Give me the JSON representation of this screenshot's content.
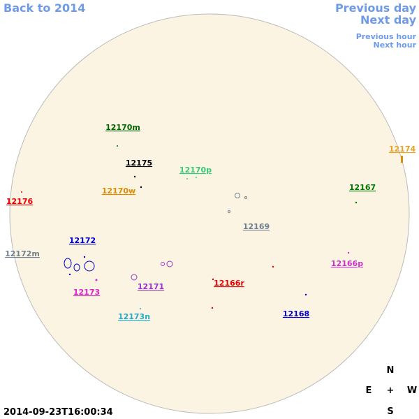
{
  "nav": {
    "back": "Back to 2014",
    "previous_day": "Previous day",
    "next_day": "Next day",
    "previous_hour": "Previous hour",
    "next_hour": "Next hour"
  },
  "regions": [
    "12170m",
    "12175",
    "12170p",
    "12170w",
    "12174",
    "12167",
    "12176",
    "12169",
    "12172",
    "12172m",
    "12166p",
    "12166r",
    "12171",
    "12173",
    "12168",
    "12173n"
  ],
  "compass": {
    "north": "N",
    "east": "E",
    "center": "+",
    "west": "W",
    "south": "S"
  },
  "timestamp": "2014-09-23T16:00:34"
}
